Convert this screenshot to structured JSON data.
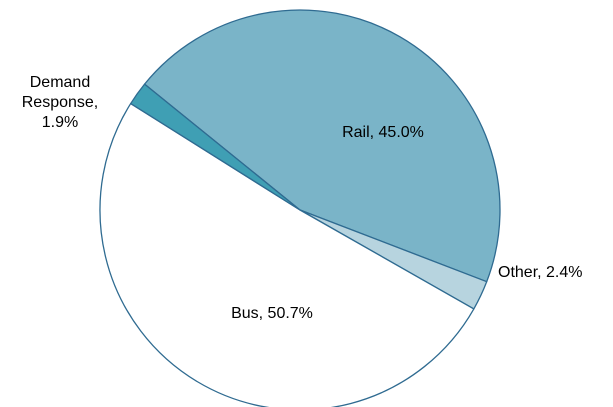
{
  "chart_data": {
    "type": "pie",
    "title": "",
    "slices": [
      {
        "name": "Rail",
        "value": 45.0,
        "label": "Rail, 45.0%",
        "color": "#7ab4c8"
      },
      {
        "name": "Other",
        "value": 2.4,
        "label": "Other, 2.4%",
        "color": "#b7d4df"
      },
      {
        "name": "Bus",
        "value": 50.7,
        "label": "Bus, 50.7%",
        "color": "#ffffff"
      },
      {
        "name": "Demand Response",
        "value": 1.9,
        "label_lines": [
          "Demand",
          "Response,",
          "1.9%"
        ],
        "color": "#3f9fb4"
      }
    ],
    "legend": "none",
    "outline_color": "#2f6b91"
  }
}
